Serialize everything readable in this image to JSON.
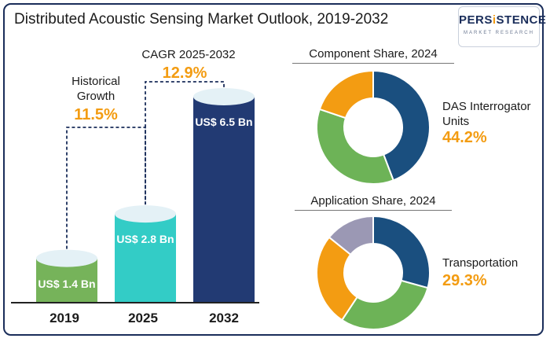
{
  "title": "Distributed Acoustic Sensing Market Outlook, 2019-2032",
  "logo": {
    "main_pre": "PERS",
    "main_i": "i",
    "main_post": "STENCE",
    "sub": "MARKET RESEARCH"
  },
  "colors": {
    "green": "#76b35a",
    "teal": "#33ccc6",
    "navy": "#223a73",
    "orange": "#f39c12",
    "blue": "#1a4f7f",
    "green2": "#6db357",
    "gray": "#9b98b4"
  },
  "chart_data": [
    {
      "type": "bar",
      "categories": [
        "2019",
        "2025",
        "2032"
      ],
      "values": [
        1.4,
        2.8,
        6.5
      ],
      "value_labels": [
        "US$ 1.4 Bn",
        "US$ 2.8 Bn",
        "US$ 6.5 Bn"
      ],
      "annotations": [
        {
          "label_line1": "Historical",
          "label_line2": "Growth",
          "value": "11.5%"
        },
        {
          "label_line1": "CAGR 2025-2032",
          "value": "12.9%"
        }
      ]
    },
    {
      "type": "pie",
      "title": "Component Share, 2024",
      "highlight_label_line1": "DAS Interrogator",
      "highlight_label_line2": "Units",
      "highlight_value": "44.2%",
      "slices": [
        44.2,
        36.0,
        19.8
      ]
    },
    {
      "type": "pie",
      "title": "Application Share, 2024",
      "highlight_label_line1": "Transportation",
      "highlight_value": "29.3%",
      "slices": [
        29.3,
        30.0,
        26.5,
        14.2
      ]
    }
  ]
}
